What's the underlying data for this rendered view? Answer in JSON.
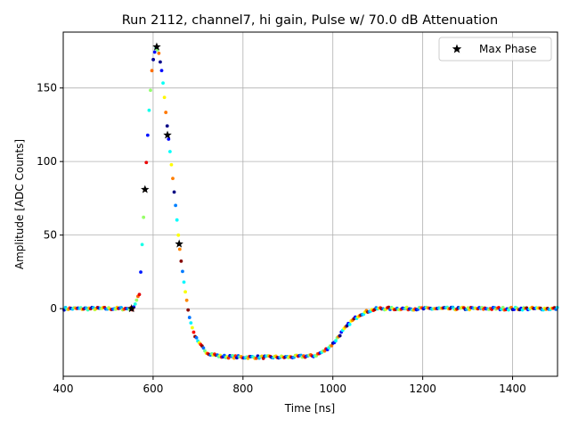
{
  "chart_data": {
    "type": "scatter",
    "title": "Run 2112, channel7, hi gain, Pulse w/ 70.0 dB Attenuation",
    "xlabel": "Time [ns]",
    "ylabel": "Amplitude [ADC Counts]",
    "xlim": [
      400,
      1500
    ],
    "ylim": [
      -46,
      188
    ],
    "xticks": [
      400,
      600,
      800,
      1000,
      1200,
      1400
    ],
    "yticks": [
      0,
      50,
      100,
      150
    ],
    "grid": true,
    "legend_position": "top-right",
    "colormap": "jet",
    "phase_count": 8,
    "pulse_points": [
      [
        400,
        0
      ],
      [
        540,
        0
      ],
      [
        555,
        0
      ],
      [
        570,
        10
      ],
      [
        580,
        70
      ],
      [
        590,
        130
      ],
      [
        598,
        165
      ],
      [
        605,
        177
      ],
      [
        612,
        175
      ],
      [
        620,
        160
      ],
      [
        630,
        128
      ],
      [
        640,
        100
      ],
      [
        650,
        70
      ],
      [
        660,
        38
      ],
      [
        670,
        15
      ],
      [
        680,
        -5
      ],
      [
        690,
        -16
      ],
      [
        700,
        -23
      ],
      [
        720,
        -30
      ],
      [
        750,
        -32.5
      ],
      [
        800,
        -33
      ],
      [
        900,
        -33
      ],
      [
        960,
        -32
      ],
      [
        980,
        -29
      ],
      [
        1000,
        -24
      ],
      [
        1020,
        -16
      ],
      [
        1040,
        -9
      ],
      [
        1060,
        -4
      ],
      [
        1080,
        -1.5
      ],
      [
        1100,
        0
      ],
      [
        1500,
        0
      ]
    ],
    "series": [
      {
        "name": "Max Phase",
        "marker": "star",
        "color": "#000000",
        "points": [
          [
            552,
            0
          ],
          [
            582,
            81
          ],
          [
            608,
            178
          ],
          [
            632,
            118
          ],
          [
            658,
            44
          ]
        ]
      }
    ]
  }
}
